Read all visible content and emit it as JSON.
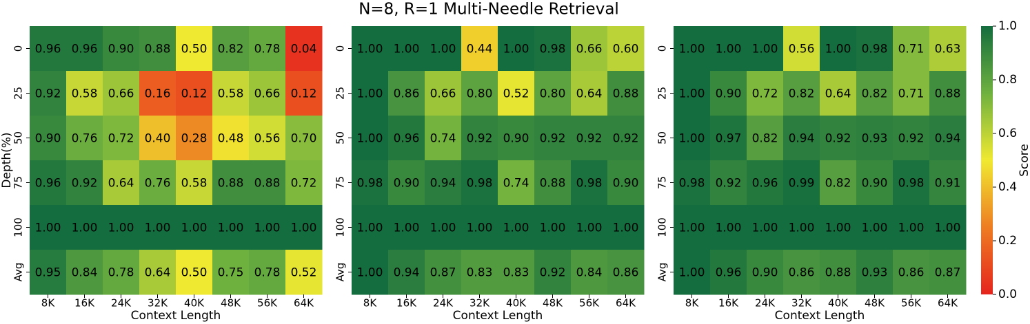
{
  "title": "N=8, R=1 Multi-Needle Retrieval",
  "colorbar": {
    "label": "Score",
    "lim": [
      0,
      1
    ],
    "ticks": [
      {
        "value": 0,
        "label": "0.0"
      },
      {
        "value": 0.2,
        "label": "0.2"
      },
      {
        "value": 0.4,
        "label": "0.4"
      },
      {
        "value": 0.6,
        "label": "0.6"
      },
      {
        "value": 0.8,
        "label": "0.8"
      },
      {
        "value": 1,
        "label": "1.0"
      }
    ],
    "colors": [
      "#e5241d",
      "#ee7d22",
      "#f0e931",
      "#6fb13f",
      "#146d3e"
    ]
  },
  "chart_data": [
    {
      "type": "heatmap",
      "ylabel": "Depth(%)",
      "xlabel": "Context Length",
      "x_categories": [
        "8K",
        "16K",
        "24K",
        "32K",
        "40K",
        "48K",
        "56K",
        "64K"
      ],
      "y_categories": [
        "0",
        "25",
        "50",
        "75",
        "100",
        "Avg"
      ],
      "values": [
        [
          0.96,
          0.96,
          0.9,
          0.88,
          0.5,
          0.82,
          0.78,
          0.04
        ],
        [
          0.92,
          0.58,
          0.66,
          0.16,
          0.12,
          0.58,
          0.66,
          0.12
        ],
        [
          0.9,
          0.76,
          0.72,
          0.4,
          0.28,
          0.48,
          0.56,
          0.7
        ],
        [
          0.96,
          0.92,
          0.64,
          0.76,
          0.58,
          0.88,
          0.88,
          0.72
        ],
        [
          1,
          1,
          1,
          1,
          1,
          1,
          1,
          1
        ],
        [
          0.95,
          0.84,
          0.78,
          0.64,
          0.5,
          0.75,
          0.78,
          0.52
        ]
      ],
      "value_labels": [
        [
          "0.96",
          "0.96",
          "0.90",
          "0.88",
          "0.50",
          "0.82",
          "0.78",
          "0.04"
        ],
        [
          "0.92",
          "0.58",
          "0.66",
          "0.16",
          "0.12",
          "0.58",
          "0.66",
          "0.12"
        ],
        [
          "0.90",
          "0.76",
          "0.72",
          "0.40",
          "0.28",
          "0.48",
          "0.56",
          "0.70"
        ],
        [
          "0.96",
          "0.92",
          "0.64",
          "0.76",
          "0.58",
          "0.88",
          "0.88",
          "0.72"
        ],
        [
          "1.00",
          "1.00",
          "1.00",
          "1.00",
          "1.00",
          "1.00",
          "1.00",
          "1.00"
        ],
        [
          "0.95",
          "0.84",
          "0.78",
          "0.64",
          "0.50",
          "0.75",
          "0.78",
          "0.52"
        ]
      ]
    },
    {
      "type": "heatmap",
      "xlabel": "Context Length",
      "x_categories": [
        "8K",
        "16K",
        "24K",
        "32K",
        "40K",
        "48K",
        "56K",
        "64K"
      ],
      "y_categories": [
        "0",
        "25",
        "50",
        "75",
        "100",
        "Avg"
      ],
      "values": [
        [
          1,
          1,
          1,
          0.44,
          1,
          0.98,
          0.66,
          0.6
        ],
        [
          1,
          0.86,
          0.66,
          0.8,
          0.52,
          0.8,
          0.64,
          0.88
        ],
        [
          1,
          0.96,
          0.74,
          0.92,
          0.9,
          0.92,
          0.92,
          0.92
        ],
        [
          0.98,
          0.9,
          0.94,
          0.98,
          0.74,
          0.88,
          0.98,
          0.9
        ],
        [
          1,
          1,
          1,
          1,
          1,
          1,
          1,
          1
        ],
        [
          1,
          0.94,
          0.87,
          0.83,
          0.83,
          0.92,
          0.84,
          0.86
        ]
      ],
      "value_labels": [
        [
          "1.00",
          "1.00",
          "1.00",
          "0.44",
          "1.00",
          "0.98",
          "0.66",
          "0.60"
        ],
        [
          "1.00",
          "0.86",
          "0.66",
          "0.80",
          "0.52",
          "0.80",
          "0.64",
          "0.88"
        ],
        [
          "1.00",
          "0.96",
          "0.74",
          "0.92",
          "0.90",
          "0.92",
          "0.92",
          "0.92"
        ],
        [
          "0.98",
          "0.90",
          "0.94",
          "0.98",
          "0.74",
          "0.88",
          "0.98",
          "0.90"
        ],
        [
          "1.00",
          "1.00",
          "1.00",
          "1.00",
          "1.00",
          "1.00",
          "1.00",
          "1.00"
        ],
        [
          "1.00",
          "0.94",
          "0.87",
          "0.83",
          "0.83",
          "0.92",
          "0.84",
          "0.86"
        ]
      ]
    },
    {
      "type": "heatmap",
      "xlabel": "Context Length",
      "x_categories": [
        "8K",
        "16K",
        "24K",
        "32K",
        "40K",
        "48K",
        "56K",
        "64K"
      ],
      "y_categories": [
        "0",
        "25",
        "50",
        "75",
        "100",
        "Avg"
      ],
      "values": [
        [
          1,
          1,
          1,
          0.56,
          1,
          0.98,
          0.71,
          0.63
        ],
        [
          1,
          0.9,
          0.72,
          0.82,
          0.64,
          0.82,
          0.71,
          0.88
        ],
        [
          1,
          0.97,
          0.82,
          0.94,
          0.92,
          0.93,
          0.92,
          0.94
        ],
        [
          0.98,
          0.92,
          0.96,
          0.99,
          0.82,
          0.9,
          0.98,
          0.91
        ],
        [
          1,
          1,
          1,
          1,
          1,
          1,
          1,
          1
        ],
        [
          1,
          0.96,
          0.9,
          0.86,
          0.88,
          0.93,
          0.86,
          0.87
        ]
      ],
      "value_labels": [
        [
          "1.00",
          "1.00",
          "1.00",
          "0.56",
          "1.00",
          "0.98",
          "0.71",
          "0.63"
        ],
        [
          "1.00",
          "0.90",
          "0.72",
          "0.82",
          "0.64",
          "0.82",
          "0.71",
          "0.88"
        ],
        [
          "1.00",
          "0.97",
          "0.82",
          "0.94",
          "0.92",
          "0.93",
          "0.92",
          "0.94"
        ],
        [
          "0.98",
          "0.92",
          "0.96",
          "0.99",
          "0.82",
          "0.90",
          "0.98",
          "0.91"
        ],
        [
          "1.00",
          "1.00",
          "1.00",
          "1.00",
          "1.00",
          "1.00",
          "1.00",
          "1.00"
        ],
        [
          "1.00",
          "0.96",
          "0.90",
          "0.86",
          "0.88",
          "0.93",
          "0.86",
          "0.87"
        ]
      ]
    }
  ]
}
